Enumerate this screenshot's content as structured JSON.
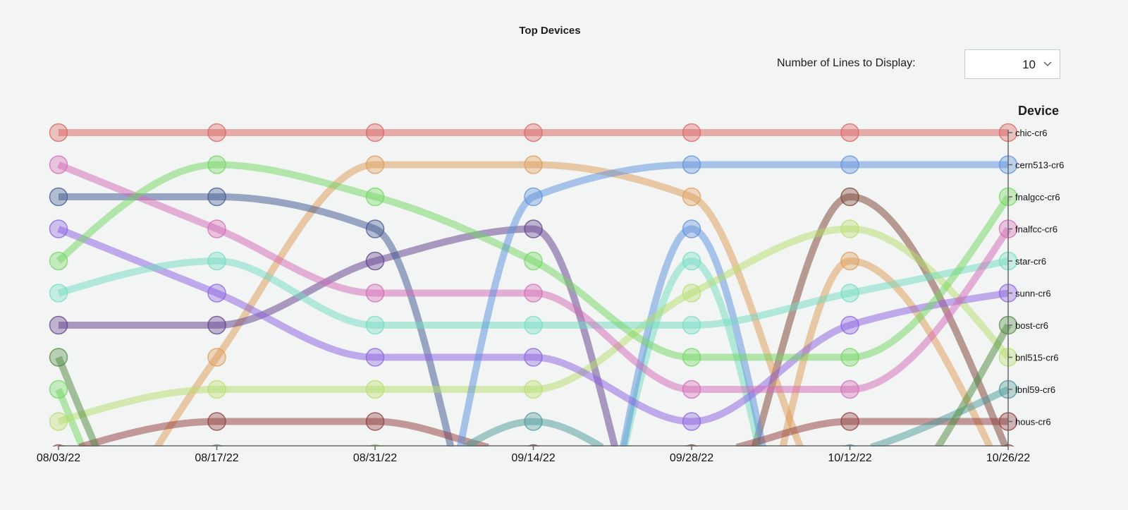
{
  "title": "Top Devices",
  "controls": {
    "lines_label": "Number of Lines to Display:",
    "lines_value": "10",
    "chevron_icon": "chevron-down-icon"
  },
  "chart_data": {
    "type": "bump",
    "title": "Top Devices",
    "legend_title": "Device",
    "x": [
      "08/03/22",
      "08/17/22",
      "08/31/22",
      "09/14/22",
      "09/28/22",
      "10/12/22",
      "10/26/22"
    ],
    "ylabel": "",
    "y_axis": "rank, 1 at top, top 10 shown",
    "series": [
      {
        "name": "chic-cr6",
        "color": "#d9605c",
        "ranks": [
          1,
          1,
          1,
          1,
          1,
          1,
          1
        ]
      },
      {
        "name": "cern513-cr6",
        "color": "#5b8fdb",
        "ranks": [
          20,
          20,
          20,
          3,
          2,
          2,
          2
        ]
      },
      {
        "name": "fnalgcc-cr6",
        "color": "#6fd65f",
        "ranks": [
          5,
          2,
          3,
          5,
          8,
          8,
          3
        ]
      },
      {
        "name": "fnalfcc-cr6",
        "color": "#d467b5",
        "ranks": [
          2,
          4,
          6,
          6,
          9,
          9,
          4
        ]
      },
      {
        "name": "star-cr6",
        "color": "#6fdcc0",
        "ranks": [
          6,
          5,
          7,
          7,
          7,
          6,
          5
        ]
      },
      {
        "name": "sunn-cr6",
        "color": "#8a5fe0",
        "ranks": [
          4,
          6,
          8,
          8,
          10,
          7,
          6
        ]
      },
      {
        "name": "bost-cr6",
        "color": "#4e8a3e",
        "ranks": [
          8,
          16,
          16,
          16,
          16,
          14,
          7
        ]
      },
      {
        "name": "bnl515-cr6",
        "color": "#b6de6a",
        "ranks": [
          10,
          9,
          9,
          9,
          6,
          4,
          8
        ]
      },
      {
        "name": "lbnl59-cr6",
        "color": "#4a9a98",
        "ranks": [
          12,
          11,
          12,
          10,
          12,
          11,
          9
        ]
      },
      {
        "name": "hous-cr6",
        "color": "#8f3a3a",
        "ranks": [
          11,
          10,
          10,
          11,
          11,
          10,
          10
        ]
      },
      {
        "name": "",
        "color": "#3d5590",
        "ranks": [
          3,
          3,
          4,
          18,
          18,
          18,
          18
        ]
      },
      {
        "name": "",
        "color": "#5e3b8c",
        "ranks": [
          7,
          7,
          5,
          4,
          17,
          17,
          17
        ]
      },
      {
        "name": "",
        "color": "#6fd65f",
        "ranks": [
          9,
          17,
          11,
          16,
          16,
          16,
          16
        ]
      },
      {
        "name": "",
        "color": "#dd9a55",
        "ranks": [
          16,
          8,
          2,
          2,
          3,
          13,
          13
        ]
      },
      {
        "name": "",
        "color": "#dd9a55",
        "ranks": [
          20,
          20,
          20,
          20,
          20,
          5,
          12
        ]
      },
      {
        "name": "",
        "color": "#5b8fdb",
        "ranks": [
          20,
          20,
          20,
          21,
          4,
          20,
          20
        ]
      },
      {
        "name": "",
        "color": "#6fdcc0",
        "ranks": [
          20,
          20,
          20,
          20,
          5,
          20,
          20
        ]
      },
      {
        "name": "",
        "color": "#7a4030",
        "ranks": [
          15,
          15,
          15,
          15,
          15,
          3,
          11
        ]
      }
    ]
  }
}
